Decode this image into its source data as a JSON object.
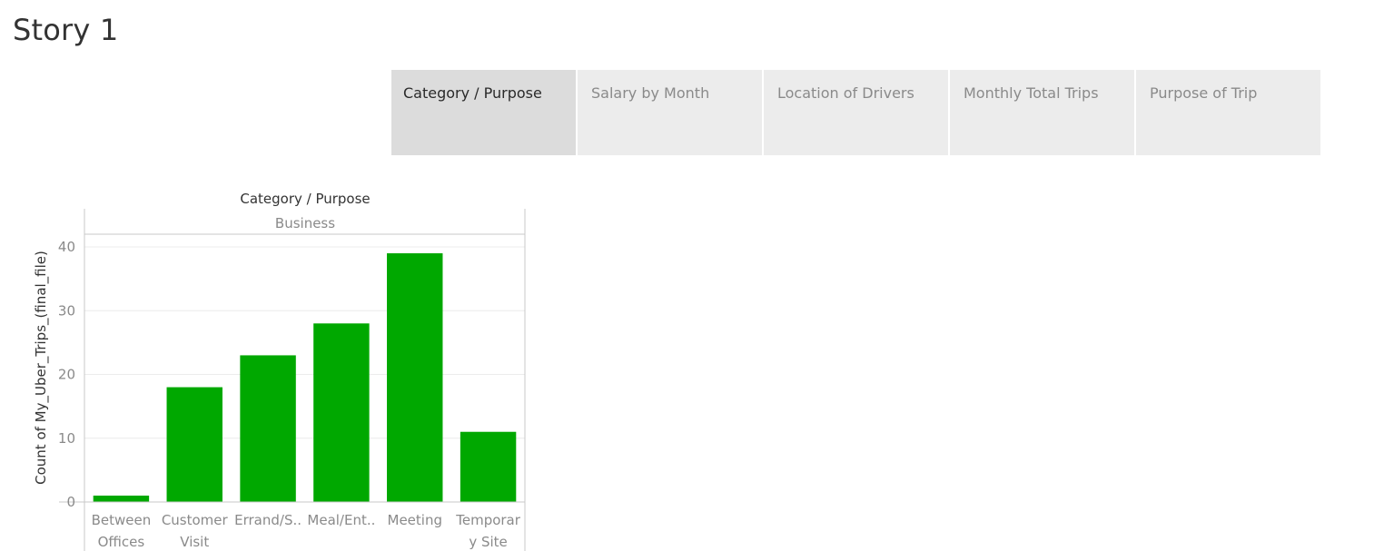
{
  "story": {
    "title": "Story 1"
  },
  "tabs": [
    {
      "label": "Category / Purpose",
      "active": true
    },
    {
      "label": "Salary by Month",
      "active": false
    },
    {
      "label": "Location of Drivers",
      "active": false
    },
    {
      "label": "Monthly Total Trips",
      "active": false
    },
    {
      "label": "Purpose of Trip",
      "active": false
    }
  ],
  "chart_data": {
    "type": "bar",
    "title": "Category / Purpose",
    "pane_header": "Business",
    "ylabel": "Count of My_Uber_Trips_(final_file)",
    "xlabel": "",
    "categories": [
      [
        "Between",
        "Offices"
      ],
      [
        "Customer",
        "Visit"
      ],
      [
        "Errand/S.."
      ],
      [
        "Meal/Ent.."
      ],
      [
        "Meeting"
      ],
      [
        "Temporar",
        "y Site"
      ]
    ],
    "values": [
      1,
      18,
      23,
      28,
      39,
      11
    ],
    "ylim": [
      0,
      40
    ],
    "yticks": [
      0,
      10,
      20,
      30,
      40
    ],
    "bar_color": "#00a800",
    "grid": true
  }
}
